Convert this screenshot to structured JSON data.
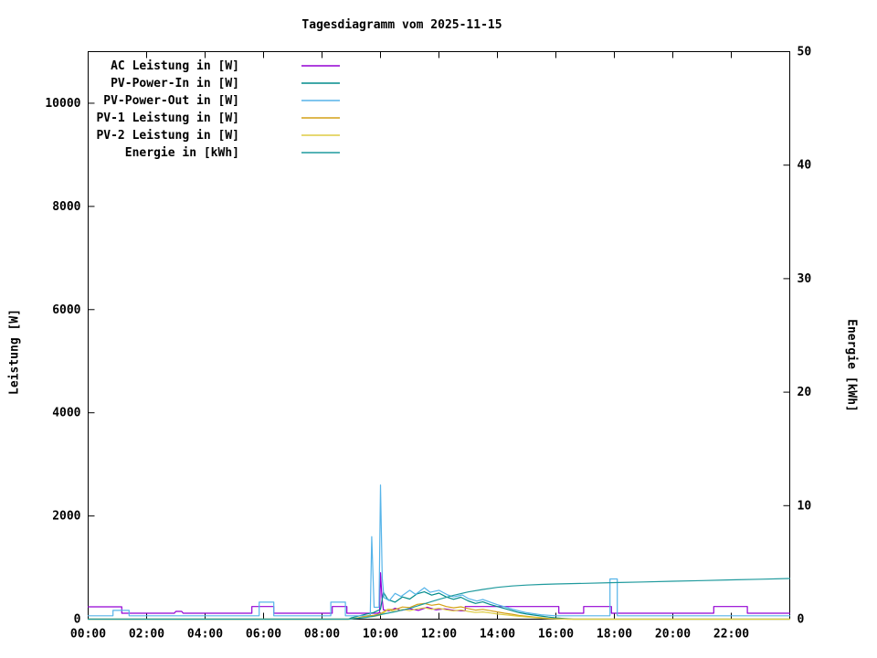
{
  "chart_data": {
    "type": "line",
    "title": "Tagesdiagramm vom 2025-11-15",
    "xlabel": "",
    "ylabel": "Leistung [W]",
    "y2label": "Energie [kWh]",
    "grid": false,
    "background": "#ffffff",
    "legend_position": "top-left-inside",
    "x_range": [
      0,
      24
    ],
    "y_range": [
      0,
      11000
    ],
    "y2_range": [
      0,
      50
    ],
    "x_ticks": [
      {
        "v": 0,
        "label": "00:00"
      },
      {
        "v": 2,
        "label": "02:00"
      },
      {
        "v": 4,
        "label": "04:00"
      },
      {
        "v": 6,
        "label": "06:00"
      },
      {
        "v": 8,
        "label": "08:00"
      },
      {
        "v": 10,
        "label": "10:00"
      },
      {
        "v": 12,
        "label": "12:00"
      },
      {
        "v": 14,
        "label": "14:00"
      },
      {
        "v": 16,
        "label": "16:00"
      },
      {
        "v": 18,
        "label": "18:00"
      },
      {
        "v": 20,
        "label": "20:00"
      },
      {
        "v": 22,
        "label": "22:00"
      }
    ],
    "y_ticks": [
      0,
      2000,
      4000,
      6000,
      8000,
      10000
    ],
    "y2_ticks": [
      0,
      10,
      20,
      30,
      40,
      50
    ],
    "series": [
      {
        "name": "AC Leistung in [W]",
        "color": "#9400d3",
        "axis": "left",
        "points": [
          [
            0,
            240
          ],
          [
            1.15,
            240
          ],
          [
            1.15,
            115
          ],
          [
            2.95,
            115
          ],
          [
            3.0,
            150
          ],
          [
            3.2,
            150
          ],
          [
            3.25,
            115
          ],
          [
            5.6,
            115
          ],
          [
            5.6,
            245
          ],
          [
            6.35,
            245
          ],
          [
            6.35,
            115
          ],
          [
            8.35,
            115
          ],
          [
            8.35,
            245
          ],
          [
            8.85,
            245
          ],
          [
            8.85,
            115
          ],
          [
            9.9,
            115
          ],
          [
            9.97,
            130
          ],
          [
            10.0,
            900
          ],
          [
            10.05,
            420
          ],
          [
            10.1,
            180
          ],
          [
            10.3,
            160
          ],
          [
            10.5,
            210
          ],
          [
            10.7,
            170
          ],
          [
            11.0,
            200
          ],
          [
            11.3,
            170
          ],
          [
            11.6,
            230
          ],
          [
            11.9,
            180
          ],
          [
            12.2,
            200
          ],
          [
            12.5,
            170
          ],
          [
            12.9,
            160
          ],
          [
            12.9,
            245
          ],
          [
            16.1,
            245
          ],
          [
            16.1,
            115
          ],
          [
            16.95,
            115
          ],
          [
            16.95,
            245
          ],
          [
            17.9,
            245
          ],
          [
            17.9,
            115
          ],
          [
            21.4,
            115
          ],
          [
            21.4,
            245
          ],
          [
            22.55,
            245
          ],
          [
            22.55,
            115
          ],
          [
            24,
            115
          ]
        ]
      },
      {
        "name": "PV-Power-In in [W]",
        "color": "#008b8b",
        "axis": "left",
        "points": [
          [
            0,
            0
          ],
          [
            8.9,
            0
          ],
          [
            9.0,
            25
          ],
          [
            9.25,
            60
          ],
          [
            9.5,
            95
          ],
          [
            9.75,
            125
          ],
          [
            10.0,
            190
          ],
          [
            10.1,
            520
          ],
          [
            10.25,
            380
          ],
          [
            10.5,
            330
          ],
          [
            10.75,
            430
          ],
          [
            11.0,
            390
          ],
          [
            11.25,
            490
          ],
          [
            11.5,
            530
          ],
          [
            11.75,
            465
          ],
          [
            12.0,
            505
          ],
          [
            12.25,
            430
          ],
          [
            12.5,
            385
          ],
          [
            12.75,
            425
          ],
          [
            13.0,
            355
          ],
          [
            13.25,
            305
          ],
          [
            13.5,
            335
          ],
          [
            13.75,
            285
          ],
          [
            14.0,
            245
          ],
          [
            14.25,
            205
          ],
          [
            14.5,
            165
          ],
          [
            14.75,
            125
          ],
          [
            15.0,
            100
          ],
          [
            15.25,
            80
          ],
          [
            15.5,
            60
          ],
          [
            15.75,
            40
          ],
          [
            16.0,
            25
          ],
          [
            16.3,
            10
          ],
          [
            16.6,
            0
          ],
          [
            24,
            0
          ]
        ]
      },
      {
        "name": "PV-Power-Out in [W]",
        "color": "#56b4e9",
        "axis": "left",
        "points": [
          [
            0,
            65
          ],
          [
            0.85,
            65
          ],
          [
            0.85,
            170
          ],
          [
            1.4,
            170
          ],
          [
            1.4,
            65
          ],
          [
            5.85,
            65
          ],
          [
            5.85,
            330
          ],
          [
            6.35,
            330
          ],
          [
            6.35,
            65
          ],
          [
            8.3,
            65
          ],
          [
            8.3,
            330
          ],
          [
            8.8,
            330
          ],
          [
            8.8,
            65
          ],
          [
            9.55,
            65
          ],
          [
            9.65,
            80
          ],
          [
            9.7,
            1600
          ],
          [
            9.78,
            230
          ],
          [
            9.95,
            230
          ],
          [
            10.0,
            2600
          ],
          [
            10.06,
            800
          ],
          [
            10.12,
            420
          ],
          [
            10.3,
            360
          ],
          [
            10.5,
            500
          ],
          [
            10.7,
            440
          ],
          [
            11.0,
            560
          ],
          [
            11.2,
            480
          ],
          [
            11.5,
            610
          ],
          [
            11.7,
            520
          ],
          [
            12.0,
            560
          ],
          [
            12.3,
            470
          ],
          [
            12.5,
            430
          ],
          [
            12.8,
            470
          ],
          [
            13.0,
            400
          ],
          [
            13.3,
            350
          ],
          [
            13.5,
            380
          ],
          [
            13.8,
            320
          ],
          [
            14.0,
            280
          ],
          [
            14.3,
            230
          ],
          [
            14.5,
            195
          ],
          [
            14.8,
            150
          ],
          [
            15.0,
            125
          ],
          [
            15.5,
            85
          ],
          [
            16.0,
            65
          ],
          [
            17.85,
            65
          ],
          [
            17.85,
            780
          ],
          [
            18.1,
            780
          ],
          [
            18.1,
            65
          ],
          [
            24,
            65
          ]
        ]
      },
      {
        "name": "PV-1 Leistung in [W]",
        "color": "#d4a017",
        "axis": "left",
        "points": [
          [
            0,
            0
          ],
          [
            8.95,
            0
          ],
          [
            9.25,
            30
          ],
          [
            9.5,
            55
          ],
          [
            9.75,
            75
          ],
          [
            10.0,
            105
          ],
          [
            10.25,
            190
          ],
          [
            10.5,
            185
          ],
          [
            10.75,
            235
          ],
          [
            11.0,
            225
          ],
          [
            11.25,
            285
          ],
          [
            11.5,
            305
          ],
          [
            11.75,
            270
          ],
          [
            12.0,
            290
          ],
          [
            12.25,
            245
          ],
          [
            12.5,
            220
          ],
          [
            12.75,
            240
          ],
          [
            13.0,
            205
          ],
          [
            13.25,
            175
          ],
          [
            13.5,
            190
          ],
          [
            13.75,
            165
          ],
          [
            14.0,
            140
          ],
          [
            14.25,
            115
          ],
          [
            14.5,
            95
          ],
          [
            14.75,
            70
          ],
          [
            15.0,
            55
          ],
          [
            15.25,
            40
          ],
          [
            15.5,
            28
          ],
          [
            15.75,
            15
          ],
          [
            16.0,
            8
          ],
          [
            16.4,
            0
          ],
          [
            24,
            0
          ]
        ]
      },
      {
        "name": "PV-2 Leistung in [W]",
        "color": "#ddcc44",
        "axis": "left",
        "points": [
          [
            0,
            0
          ],
          [
            8.95,
            0
          ],
          [
            9.25,
            25
          ],
          [
            9.5,
            40
          ],
          [
            9.75,
            50
          ],
          [
            10.0,
            80
          ],
          [
            10.25,
            180
          ],
          [
            10.5,
            145
          ],
          [
            10.75,
            190
          ],
          [
            11.0,
            165
          ],
          [
            11.25,
            200
          ],
          [
            11.5,
            220
          ],
          [
            11.75,
            190
          ],
          [
            12.0,
            210
          ],
          [
            12.25,
            180
          ],
          [
            12.5,
            160
          ],
          [
            12.75,
            180
          ],
          [
            13.0,
            150
          ],
          [
            13.25,
            130
          ],
          [
            13.5,
            140
          ],
          [
            13.75,
            120
          ],
          [
            14.0,
            100
          ],
          [
            14.25,
            85
          ],
          [
            14.5,
            70
          ],
          [
            14.75,
            55
          ],
          [
            15.0,
            42
          ],
          [
            15.25,
            30
          ],
          [
            15.5,
            20
          ],
          [
            15.75,
            10
          ],
          [
            16.0,
            5
          ],
          [
            16.4,
            0
          ],
          [
            24,
            0
          ]
        ]
      },
      {
        "name": "Energie in [kWh]",
        "color": "#1f9a9d",
        "axis": "right",
        "points": [
          [
            0,
            0
          ],
          [
            8.9,
            0
          ],
          [
            9.25,
            0.08
          ],
          [
            9.5,
            0.15
          ],
          [
            9.75,
            0.25
          ],
          [
            10.0,
            0.4
          ],
          [
            10.5,
            0.65
          ],
          [
            11.0,
            0.95
          ],
          [
            11.5,
            1.35
          ],
          [
            12.0,
            1.75
          ],
          [
            12.5,
            2.1
          ],
          [
            13.0,
            2.4
          ],
          [
            13.5,
            2.62
          ],
          [
            14.0,
            2.8
          ],
          [
            14.5,
            2.92
          ],
          [
            15.0,
            3.0
          ],
          [
            15.5,
            3.06
          ],
          [
            16.0,
            3.1
          ],
          [
            17.0,
            3.16
          ],
          [
            18.0,
            3.22
          ],
          [
            19.0,
            3.28
          ],
          [
            20.0,
            3.34
          ],
          [
            21.0,
            3.4
          ],
          [
            22.0,
            3.46
          ],
          [
            23.0,
            3.52
          ],
          [
            24.0,
            3.58
          ]
        ]
      }
    ]
  }
}
